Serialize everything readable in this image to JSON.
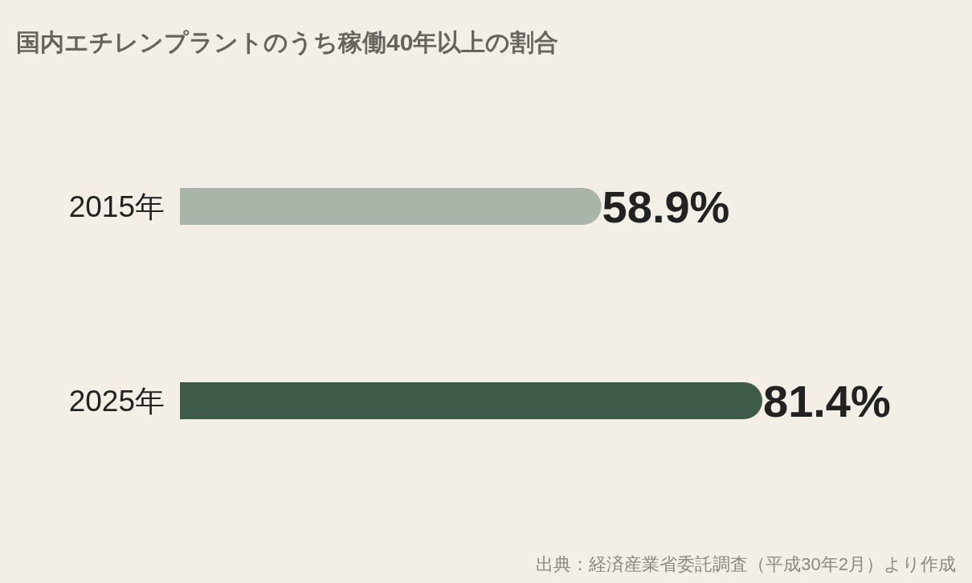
{
  "chart_data": {
    "type": "bar",
    "orientation": "horizontal",
    "title": "国内エチレンプラントのうち稼働40年以上の割合",
    "categories": [
      "2015年",
      "2025年"
    ],
    "values": [
      58.9,
      81.4
    ],
    "colors": [
      "#a9b5a9",
      "#3e5b4a"
    ],
    "value_labels": [
      "58.9%",
      "81.4%"
    ],
    "annotations": [
      "出典：経済産業省委託調査（平成30年2月）より作成"
    ]
  }
}
